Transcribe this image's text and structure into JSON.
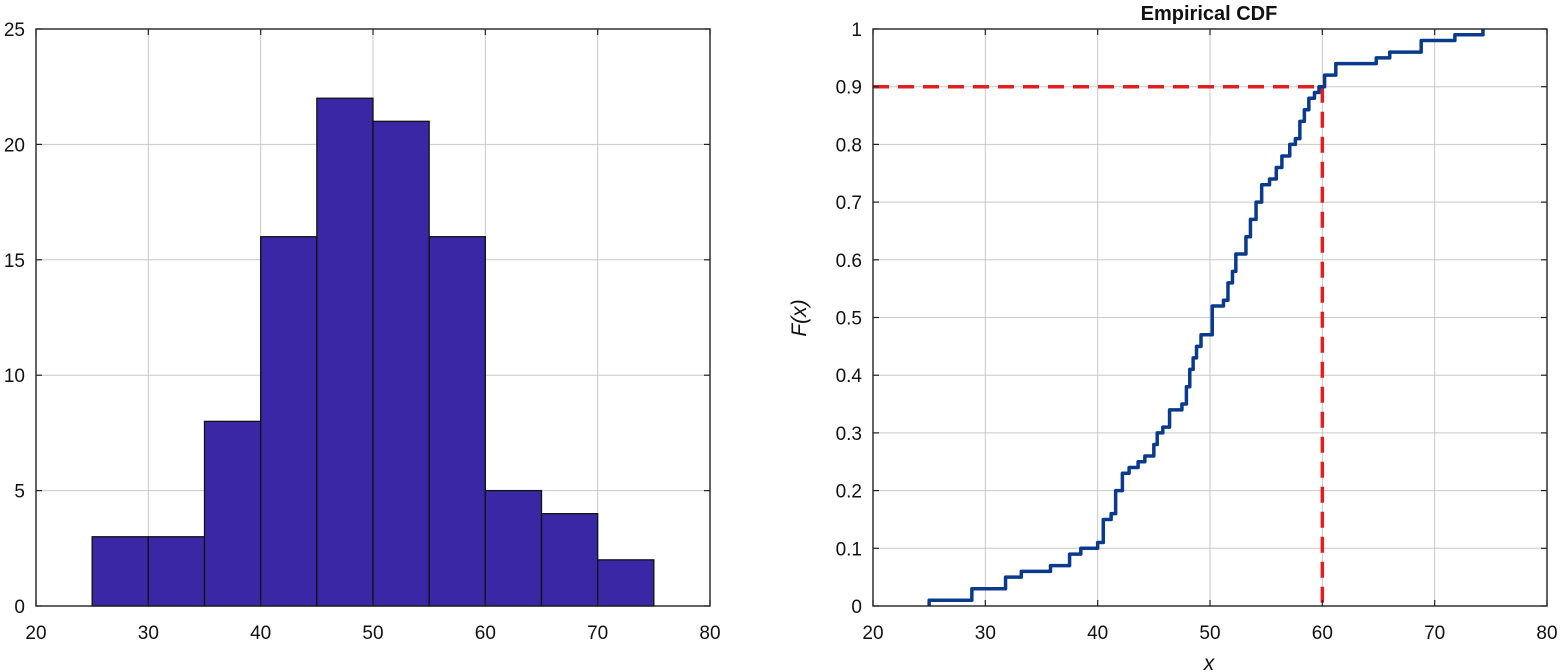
{
  "chart_data": [
    {
      "type": "bar",
      "title": "",
      "xlabel": "",
      "ylabel": "",
      "xlim": [
        20,
        80
      ],
      "ylim": [
        0,
        25
      ],
      "xticks": [
        "20",
        "30",
        "40",
        "50",
        "60",
        "70",
        "80"
      ],
      "yticks": [
        "0",
        "5",
        "10",
        "15",
        "20",
        "25"
      ],
      "grid": true,
      "bar_color": "#3a27a6",
      "bins": [
        {
          "start": 25,
          "end": 30,
          "count": 3
        },
        {
          "start": 30,
          "end": 35,
          "count": 3
        },
        {
          "start": 35,
          "end": 40,
          "count": 8
        },
        {
          "start": 40,
          "end": 45,
          "count": 16
        },
        {
          "start": 45,
          "end": 50,
          "count": 22
        },
        {
          "start": 50,
          "end": 55,
          "count": 21
        },
        {
          "start": 55,
          "end": 60,
          "count": 16
        },
        {
          "start": 60,
          "end": 65,
          "count": 5
        },
        {
          "start": 65,
          "end": 70,
          "count": 4
        },
        {
          "start": 70,
          "end": 75,
          "count": 2
        }
      ]
    },
    {
      "type": "line",
      "title": "Empirical CDF",
      "xlabel": "x",
      "ylabel": "F(x)",
      "xlim": [
        20,
        80
      ],
      "ylim": [
        0,
        1
      ],
      "xticks": [
        "20",
        "30",
        "40",
        "50",
        "60",
        "70",
        "80"
      ],
      "yticks": [
        "0",
        "0.1",
        "0.2",
        "0.3",
        "0.4",
        "0.5",
        "0.6",
        "0.7",
        "0.8",
        "0.9",
        "1"
      ],
      "grid": true,
      "line_color": "#0a3a8c",
      "reference_color": "#e02020",
      "reference_point": {
        "x": 60,
        "y": 0.9
      },
      "series": [
        {
          "step": true,
          "x": [
            25.0,
            28.8,
            31.8,
            33.2,
            35.8,
            37.5,
            38.5,
            40.0,
            40.5,
            41.2,
            41.6,
            42.2,
            42.8,
            43.6,
            44.2,
            45.0,
            45.3,
            45.8,
            46.4,
            47.5,
            47.9,
            48.2,
            48.5,
            48.8,
            49.2,
            50.2,
            51.2,
            51.6,
            52.0,
            52.3,
            53.2,
            53.6,
            54.1,
            54.6,
            55.3,
            55.9,
            56.4,
            57.1,
            57.6,
            58.0,
            58.4,
            58.8,
            59.3,
            59.7,
            60.2,
            61.2,
            64.8,
            66.0,
            68.8,
            71.8,
            74.3
          ],
          "y": [
            0.01,
            0.03,
            0.05,
            0.06,
            0.07,
            0.09,
            0.1,
            0.11,
            0.15,
            0.16,
            0.2,
            0.23,
            0.24,
            0.25,
            0.26,
            0.28,
            0.3,
            0.31,
            0.34,
            0.35,
            0.38,
            0.41,
            0.43,
            0.45,
            0.47,
            0.52,
            0.53,
            0.56,
            0.58,
            0.61,
            0.64,
            0.67,
            0.7,
            0.73,
            0.74,
            0.76,
            0.78,
            0.8,
            0.81,
            0.84,
            0.86,
            0.88,
            0.89,
            0.9,
            0.92,
            0.94,
            0.95,
            0.96,
            0.98,
            0.99,
            1.0
          ]
        }
      ]
    }
  ]
}
